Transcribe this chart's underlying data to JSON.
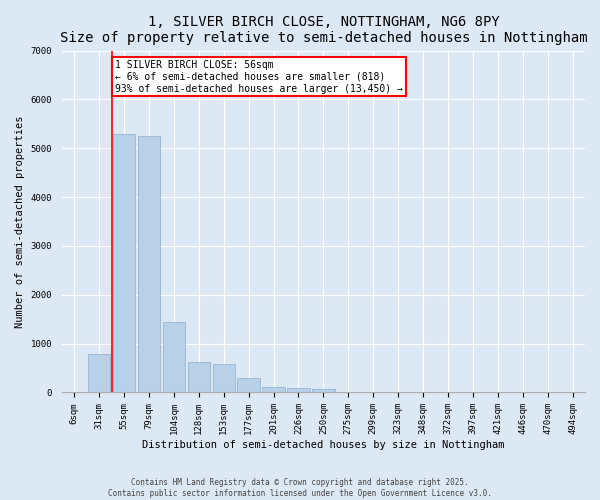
{
  "title": "1, SILVER BIRCH CLOSE, NOTTINGHAM, NG6 8PY",
  "subtitle": "Size of property relative to semi-detached houses in Nottingham",
  "xlabel": "Distribution of semi-detached houses by size in Nottingham",
  "ylabel": "Number of semi-detached properties",
  "categories": [
    "6sqm",
    "31sqm",
    "55sqm",
    "79sqm",
    "104sqm",
    "128sqm",
    "153sqm",
    "177sqm",
    "201sqm",
    "226sqm",
    "250sqm",
    "275sqm",
    "299sqm",
    "323sqm",
    "348sqm",
    "372sqm",
    "397sqm",
    "421sqm",
    "446sqm",
    "470sqm",
    "494sqm"
  ],
  "values": [
    10,
    780,
    5300,
    5250,
    1450,
    620,
    580,
    290,
    120,
    90,
    70,
    0,
    0,
    0,
    0,
    0,
    0,
    0,
    0,
    0,
    0
  ],
  "bar_color": "#b8d0e8",
  "bar_edge_color": "#8aaecc",
  "vline_bar_index": 2,
  "annotation_text": "1 SILVER BIRCH CLOSE: 56sqm\n← 6% of semi-detached houses are smaller (818)\n93% of semi-detached houses are larger (13,450) →",
  "annotation_box_color": "white",
  "annotation_box_edge": "red",
  "vline_color": "red",
  "ylim": [
    0,
    7000
  ],
  "yticks": [
    0,
    1000,
    2000,
    3000,
    4000,
    5000,
    6000,
    7000
  ],
  "footer_line1": "Contains HM Land Registry data © Crown copyright and database right 2025.",
  "footer_line2": "Contains public sector information licensed under the Open Government Licence v3.0.",
  "bg_color": "#dde8f5",
  "plot_bg_color": "#dde8f5",
  "title_fontsize": 10,
  "subtitle_fontsize": 8.5,
  "tick_fontsize": 6.5,
  "label_fontsize": 7.5,
  "annotation_fontsize": 7,
  "footer_fontsize": 5.5
}
